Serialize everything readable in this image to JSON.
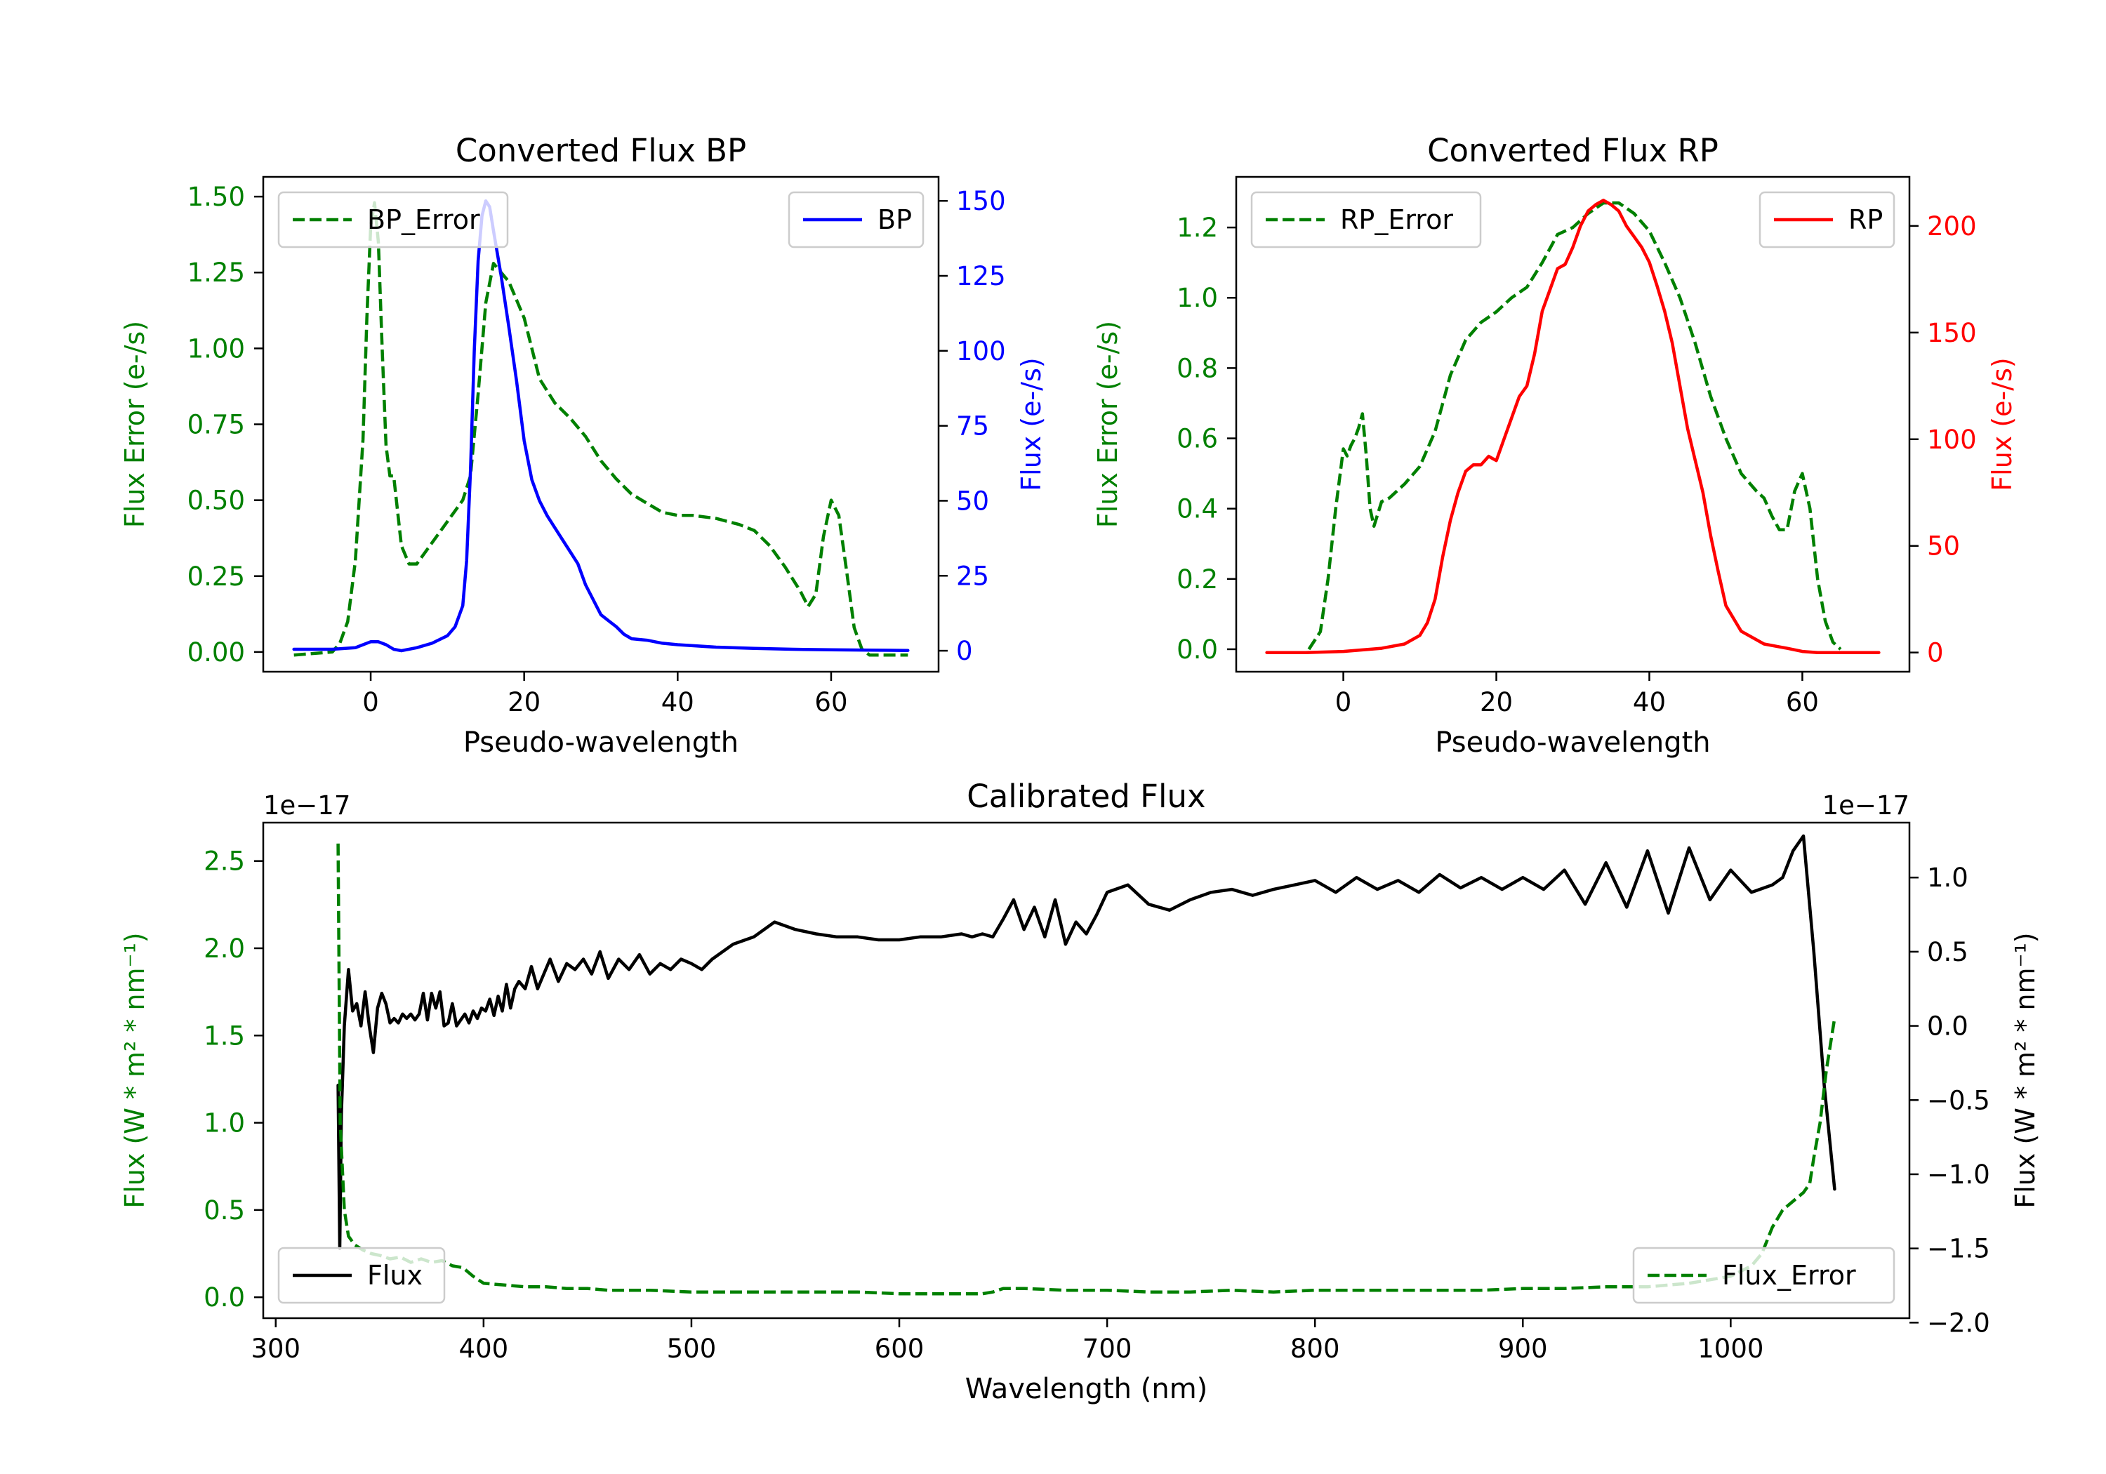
{
  "chart_data": [
    {
      "id": "bp",
      "type": "line",
      "title": "Converted Flux BP",
      "xlabel": "Pseudo-wavelength",
      "xlim": [
        -14,
        74
      ],
      "xticks": [
        0,
        20,
        40,
        60
      ],
      "left_axis": {
        "label": "Flux Error (e-/s)",
        "color": "#008000",
        "ylim": [
          -0.065,
          1.565
        ],
        "ticks": [
          0.0,
          0.25,
          0.5,
          0.75,
          1.0,
          1.25,
          1.5
        ],
        "tick_labels": [
          "0.00",
          "0.25",
          "0.50",
          "0.75",
          "1.00",
          "1.25",
          "1.50"
        ]
      },
      "right_axis": {
        "label": "Flux (e-/s)",
        "color": "#0000ff",
        "ylim": [
          -7,
          158
        ],
        "ticks": [
          0,
          25,
          50,
          75,
          100,
          125,
          150
        ],
        "tick_labels": [
          "0",
          "25",
          "50",
          "75",
          "100",
          "125",
          "150"
        ]
      },
      "series": [
        {
          "name": "BP_Error",
          "axis": "left",
          "color": "#008000",
          "dash": true,
          "legend_pos": "upper-left",
          "x": [
            -10,
            -5,
            -4,
            -3,
            -2,
            -1,
            -0.5,
            0,
            0.5,
            1,
            1.5,
            2,
            2.5,
            3,
            4,
            5,
            6,
            8,
            10,
            12,
            13,
            14,
            15,
            16,
            18,
            20,
            22,
            24,
            26,
            28,
            30,
            32,
            34,
            36,
            38,
            40,
            42,
            45,
            48,
            50,
            52,
            54,
            56,
            57,
            58,
            59,
            60,
            61,
            62,
            63,
            64,
            65,
            70
          ],
          "values": [
            -0.01,
            0.0,
            0.03,
            0.1,
            0.3,
            0.7,
            1.1,
            1.4,
            1.48,
            1.35,
            1.0,
            0.68,
            0.58,
            0.58,
            0.35,
            0.29,
            0.29,
            0.36,
            0.43,
            0.5,
            0.58,
            0.85,
            1.15,
            1.28,
            1.22,
            1.1,
            0.9,
            0.82,
            0.77,
            0.71,
            0.63,
            0.57,
            0.52,
            0.49,
            0.46,
            0.45,
            0.45,
            0.44,
            0.42,
            0.4,
            0.35,
            0.28,
            0.2,
            0.15,
            0.19,
            0.38,
            0.5,
            0.45,
            0.27,
            0.08,
            0.01,
            -0.01,
            -0.01
          ]
        },
        {
          "name": "BP",
          "axis": "right",
          "color": "#0000ff",
          "dash": false,
          "legend_pos": "upper-right",
          "x": [
            -10,
            -5,
            -2,
            0,
            1,
            2,
            3,
            4,
            6,
            8,
            10,
            11,
            12,
            12.5,
            13,
            13.5,
            14,
            14.5,
            15,
            15.5,
            16,
            17,
            18,
            19,
            20,
            21,
            22,
            23,
            24,
            25,
            26,
            27,
            28,
            29,
            30,
            31,
            32,
            33,
            34,
            36,
            38,
            40,
            45,
            50,
            55,
            60,
            65,
            70
          ],
          "values": [
            0.5,
            0.5,
            1,
            3,
            3,
            2,
            0.5,
            0,
            1,
            2.5,
            5,
            8,
            15,
            30,
            60,
            100,
            130,
            145,
            150,
            148,
            140,
            125,
            108,
            90,
            70,
            57,
            50,
            45,
            41,
            37,
            33,
            29,
            22,
            17,
            12,
            10,
            8,
            5.5,
            4,
            3.5,
            2.5,
            2,
            1.2,
            0.8,
            0.5,
            0.3,
            0.2,
            0.1
          ]
        }
      ]
    },
    {
      "id": "rp",
      "type": "line",
      "title": "Converted Flux RP",
      "xlabel": "Pseudo-wavelength",
      "xlim": [
        -14,
        74
      ],
      "xticks": [
        0,
        20,
        40,
        60
      ],
      "left_axis": {
        "label": "Flux Error (e-/s)",
        "color": "#008000",
        "ylim": [
          -0.064,
          1.344
        ],
        "ticks": [
          0.0,
          0.2,
          0.4,
          0.6,
          0.8,
          1.0,
          1.2
        ],
        "tick_labels": [
          "0.0",
          "0.2",
          "0.4",
          "0.6",
          "0.8",
          "1.0",
          "1.2"
        ]
      },
      "right_axis": {
        "label": "Flux (e-/s)",
        "color": "#ff0000",
        "ylim": [
          -9,
          223
        ],
        "ticks": [
          0,
          50,
          100,
          150,
          200
        ],
        "tick_labels": [
          "0",
          "50",
          "100",
          "150",
          "200"
        ]
      },
      "series": [
        {
          "name": "RP_Error",
          "axis": "left",
          "color": "#008000",
          "dash": true,
          "legend_pos": "upper-left",
          "x": [
            -4.5,
            -3,
            -2,
            -1,
            0,
            0.5,
            1,
            1.5,
            2,
            2.5,
            3,
            3.5,
            4,
            5,
            6,
            8,
            10,
            12,
            14,
            16,
            18,
            20,
            22,
            24,
            26,
            28,
            30,
            32,
            34,
            36,
            38,
            40,
            42,
            44,
            46,
            48,
            50,
            52,
            54,
            55,
            56,
            57,
            58,
            59,
            60,
            61,
            62,
            63,
            64,
            65
          ],
          "values": [
            0.0,
            0.05,
            0.2,
            0.4,
            0.57,
            0.55,
            0.58,
            0.6,
            0.63,
            0.67,
            0.55,
            0.4,
            0.35,
            0.42,
            0.43,
            0.47,
            0.52,
            0.62,
            0.78,
            0.88,
            0.93,
            0.96,
            1.0,
            1.03,
            1.1,
            1.18,
            1.2,
            1.24,
            1.27,
            1.27,
            1.24,
            1.19,
            1.1,
            1.0,
            0.87,
            0.72,
            0.6,
            0.5,
            0.45,
            0.43,
            0.38,
            0.34,
            0.34,
            0.45,
            0.5,
            0.4,
            0.2,
            0.08,
            0.02,
            0.0
          ]
        },
        {
          "name": "RP",
          "axis": "right",
          "color": "#ff0000",
          "dash": false,
          "legend_pos": "upper-right",
          "x": [
            -10,
            -5,
            0,
            5,
            8,
            10,
            11,
            12,
            13,
            14,
            15,
            16,
            17,
            18,
            19,
            20,
            21,
            22,
            23,
            24,
            25,
            26,
            27,
            28,
            29,
            30,
            31,
            32,
            33,
            34,
            35,
            36,
            37,
            38,
            39,
            40,
            41,
            42,
            43,
            44,
            45,
            46,
            47,
            48,
            49,
            50,
            52,
            55,
            58,
            60,
            62,
            65,
            70
          ],
          "values": [
            0,
            0,
            0.5,
            2,
            4,
            8,
            14,
            25,
            45,
            62,
            75,
            85,
            88,
            88,
            92,
            90,
            100,
            110,
            120,
            125,
            140,
            160,
            170,
            180,
            182,
            190,
            200,
            207,
            210,
            212,
            210,
            207,
            200,
            195,
            190,
            183,
            172,
            160,
            145,
            125,
            105,
            90,
            75,
            55,
            38,
            22,
            10,
            4,
            2,
            0.5,
            0,
            0,
            0
          ]
        }
      ]
    },
    {
      "id": "cal",
      "type": "line",
      "title": "Calibrated Flux",
      "xlabel": "Wavelength (nm)",
      "xlim": [
        294,
        1086
      ],
      "xticks": [
        300,
        400,
        500,
        600,
        700,
        800,
        900,
        1000
      ],
      "left_axis": {
        "label": "Flux (W * m² * nm⁻¹)",
        "color": "#008000",
        "offset_text": "1e−17",
        "ylim": [
          -0.12,
          2.72
        ],
        "ticks": [
          0.0,
          0.5,
          1.0,
          1.5,
          2.0,
          2.5
        ],
        "tick_labels": [
          "0.0",
          "0.5",
          "1.0",
          "1.5",
          "2.0",
          "2.5"
        ]
      },
      "right_axis": {
        "label": "Flux (W * m² * nm⁻¹)",
        "color": "#000000",
        "offset_text": "1e−17",
        "ylim": [
          -1.97,
          1.37
        ],
        "ticks": [
          -2.0,
          -1.5,
          -1.0,
          -0.5,
          0.0,
          0.5,
          1.0
        ],
        "tick_labels": [
          "−2.0",
          "−1.5",
          "−1.0",
          "−0.5",
          "0.0",
          "0.5",
          "1.0"
        ]
      },
      "series": [
        {
          "name": "Flux",
          "axis": "right",
          "color": "#000000",
          "dash": false,
          "legend_pos": "lower-left",
          "x": [
            330,
            330.8,
            331.6,
            333,
            335,
            337,
            339,
            341,
            343,
            345,
            347,
            349,
            351,
            353,
            355,
            357,
            359,
            361,
            363,
            365,
            367,
            369,
            371,
            373,
            375,
            377,
            379,
            381,
            383,
            385,
            387,
            389,
            391,
            393,
            395,
            397,
            399,
            401,
            403,
            405,
            407,
            409,
            411,
            413,
            415,
            417,
            420,
            423,
            426,
            429,
            432,
            436,
            440,
            444,
            448,
            452,
            456,
            460,
            465,
            470,
            475,
            480,
            485,
            490,
            495,
            500,
            505,
            510,
            515,
            520,
            530,
            540,
            550,
            560,
            570,
            580,
            590,
            600,
            610,
            620,
            630,
            635,
            640,
            645,
            650,
            655,
            660,
            665,
            670,
            675,
            680,
            685,
            690,
            695,
            700,
            710,
            720,
            730,
            740,
            750,
            760,
            770,
            780,
            790,
            800,
            810,
            820,
            830,
            840,
            850,
            860,
            870,
            880,
            890,
            900,
            910,
            920,
            930,
            940,
            950,
            960,
            970,
            980,
            990,
            1000,
            1010,
            1020,
            1025,
            1030,
            1035,
            1040,
            1045,
            1050
          ],
          "values": [
            -0.4,
            -1.5,
            -0.6,
            0.0,
            0.38,
            0.1,
            0.15,
            0.0,
            0.23,
            0.0,
            -0.18,
            0.12,
            0.22,
            0.15,
            0.02,
            0.05,
            0.02,
            0.08,
            0.05,
            0.08,
            0.04,
            0.08,
            0.22,
            0.04,
            0.22,
            0.12,
            0.23,
            0.0,
            0.02,
            0.15,
            0.0,
            0.04,
            0.08,
            0.02,
            0.1,
            0.05,
            0.12,
            0.1,
            0.18,
            0.07,
            0.2,
            0.1,
            0.28,
            0.12,
            0.25,
            0.3,
            0.25,
            0.4,
            0.25,
            0.35,
            0.45,
            0.3,
            0.42,
            0.38,
            0.45,
            0.35,
            0.5,
            0.32,
            0.45,
            0.38,
            0.48,
            0.35,
            0.42,
            0.38,
            0.45,
            0.42,
            0.38,
            0.45,
            0.5,
            0.55,
            0.6,
            0.7,
            0.65,
            0.62,
            0.6,
            0.6,
            0.58,
            0.58,
            0.6,
            0.6,
            0.62,
            0.6,
            0.62,
            0.6,
            0.72,
            0.85,
            0.65,
            0.8,
            0.6,
            0.85,
            0.55,
            0.7,
            0.62,
            0.75,
            0.9,
            0.95,
            0.82,
            0.78,
            0.85,
            0.9,
            0.92,
            0.88,
            0.92,
            0.95,
            0.98,
            0.9,
            1.0,
            0.92,
            0.98,
            0.9,
            1.02,
            0.93,
            1.0,
            0.92,
            1.0,
            0.92,
            1.05,
            0.82,
            1.1,
            0.8,
            1.18,
            0.76,
            1.2,
            0.85,
            1.05,
            0.9,
            0.95,
            1.0,
            1.18,
            1.28,
            0.5,
            -0.4,
            -1.1
          ]
        },
        {
          "name": "Flux_Error",
          "axis": "left",
          "color": "#008000",
          "dash": true,
          "legend_pos": "lower-right",
          "x": [
            330,
            331,
            333,
            335,
            338,
            342,
            346,
            350,
            355,
            360,
            365,
            370,
            375,
            380,
            385,
            390,
            395,
            400,
            410,
            420,
            430,
            440,
            450,
            460,
            480,
            500,
            520,
            540,
            560,
            580,
            600,
            620,
            630,
            640,
            645,
            650,
            660,
            680,
            700,
            720,
            740,
            760,
            780,
            800,
            820,
            840,
            860,
            880,
            900,
            920,
            940,
            960,
            980,
            1000,
            1010,
            1015,
            1020,
            1025,
            1030,
            1035,
            1038,
            1040,
            1043,
            1046,
            1048,
            1050
          ],
          "values": [
            2.6,
            1.0,
            0.5,
            0.35,
            0.3,
            0.27,
            0.25,
            0.24,
            0.22,
            0.23,
            0.2,
            0.22,
            0.2,
            0.21,
            0.18,
            0.17,
            0.12,
            0.08,
            0.07,
            0.06,
            0.06,
            0.05,
            0.05,
            0.04,
            0.04,
            0.03,
            0.03,
            0.03,
            0.03,
            0.03,
            0.02,
            0.02,
            0.02,
            0.02,
            0.03,
            0.05,
            0.05,
            0.04,
            0.04,
            0.03,
            0.03,
            0.04,
            0.03,
            0.04,
            0.04,
            0.04,
            0.04,
            0.04,
            0.05,
            0.05,
            0.06,
            0.06,
            0.08,
            0.12,
            0.18,
            0.25,
            0.4,
            0.5,
            0.55,
            0.6,
            0.65,
            0.8,
            1.0,
            1.3,
            1.45,
            1.6
          ]
        }
      ]
    }
  ]
}
